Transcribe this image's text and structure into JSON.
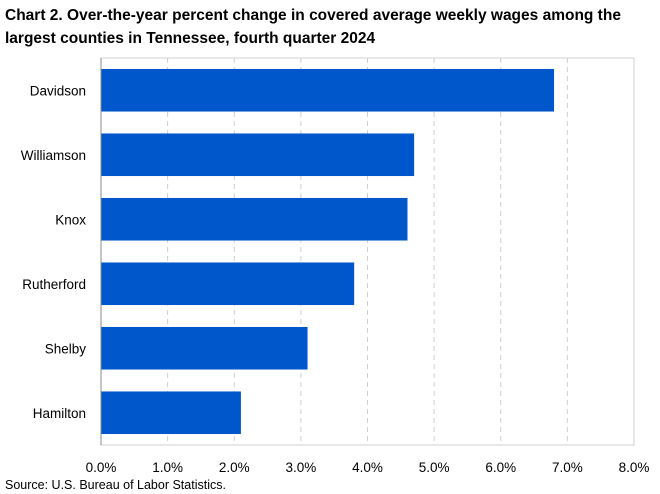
{
  "chart_data": {
    "type": "bar",
    "orientation": "horizontal",
    "title": "Chart 2. Over-the-year percent change in covered average weekly wages among the largest counties in Tennessee, fourth quarter 2024",
    "categories": [
      "Davidson",
      "Williamson",
      "Knox",
      "Rutherford",
      "Shelby",
      "Hamilton"
    ],
    "values": [
      6.8,
      4.7,
      4.6,
      3.8,
      3.1,
      2.1
    ],
    "xlim": [
      0,
      8
    ],
    "xticks": [
      "0.0%",
      "1.0%",
      "2.0%",
      "3.0%",
      "4.0%",
      "5.0%",
      "6.0%",
      "7.0%",
      "8.0%"
    ],
    "xlabel": "",
    "ylabel": "",
    "grid": "vertical dashed",
    "bar_color": "#0057cc",
    "source": "Source: U.S. Bureau of Labor Statistics."
  }
}
